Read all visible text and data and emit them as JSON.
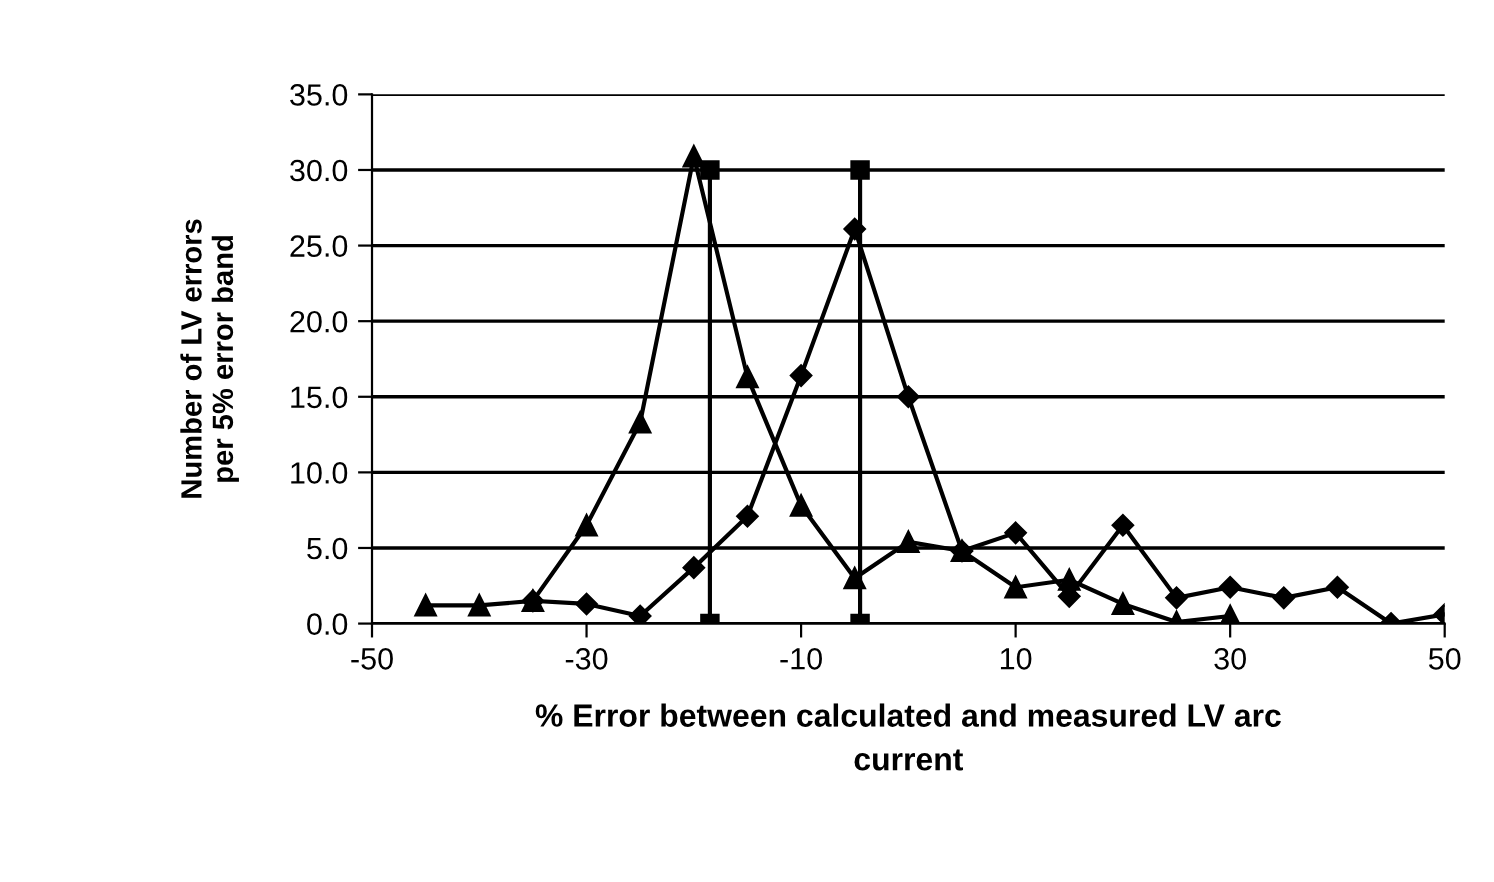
{
  "chart_data": {
    "type": "line",
    "xlabel": "% Error between calculated and measured LV arc\ncurrent",
    "ylabel": "Number of LV errors\nper 5% error band",
    "xlim": [
      -50,
      50
    ],
    "xticks": [
      -50,
      -30,
      -10,
      10,
      30,
      50
    ],
    "ylim": [
      0,
      35
    ],
    "yticks": [
      {
        "value": 0,
        "label": "0.0"
      },
      {
        "value": 5,
        "label": "5.0"
      },
      {
        "value": 10,
        "label": "10.0"
      },
      {
        "value": 15,
        "label": "15.0"
      },
      {
        "value": 20,
        "label": "20.0"
      },
      {
        "value": 25,
        "label": "25.0"
      },
      {
        "value": 30,
        "label": "30.0"
      },
      {
        "value": 35,
        "label": "35.0"
      }
    ],
    "grid": "y",
    "legend": false,
    "series": [
      {
        "color": "#000000",
        "marker": "triangle",
        "x": [
          -45,
          -40,
          -35,
          -30,
          -25,
          -20,
          -15,
          -10,
          -5,
          0,
          5,
          10,
          15,
          20,
          25,
          30
        ],
        "values": [
          1.2,
          1.2,
          1.5,
          6.5,
          13.3,
          30.9,
          16.3,
          7.8,
          3.0,
          5.4,
          4.8,
          2.4,
          2.9,
          1.3,
          0.1,
          0.5
        ]
      },
      {
        "color": "#000000",
        "marker": "diamond",
        "x": [
          -35,
          -30,
          -25,
          -20,
          -15,
          -10,
          -5,
          0,
          5,
          10,
          15,
          20,
          25,
          30,
          35,
          40,
          45,
          50
        ],
        "values": [
          1.5,
          1.3,
          0.5,
          3.7,
          7.1,
          16.4,
          26.1,
          15.0,
          4.8,
          6.0,
          1.8,
          6.5,
          1.7,
          2.4,
          1.7,
          2.4,
          0.0,
          0.6
        ]
      },
      {
        "color": "#000000",
        "marker": "square",
        "x": [
          -18.5,
          -18.5
        ],
        "values": [
          0,
          30
        ]
      },
      {
        "color": "#000000",
        "marker": "square",
        "x": [
          -4.5,
          -4.5
        ],
        "values": [
          0,
          30
        ]
      }
    ]
  }
}
